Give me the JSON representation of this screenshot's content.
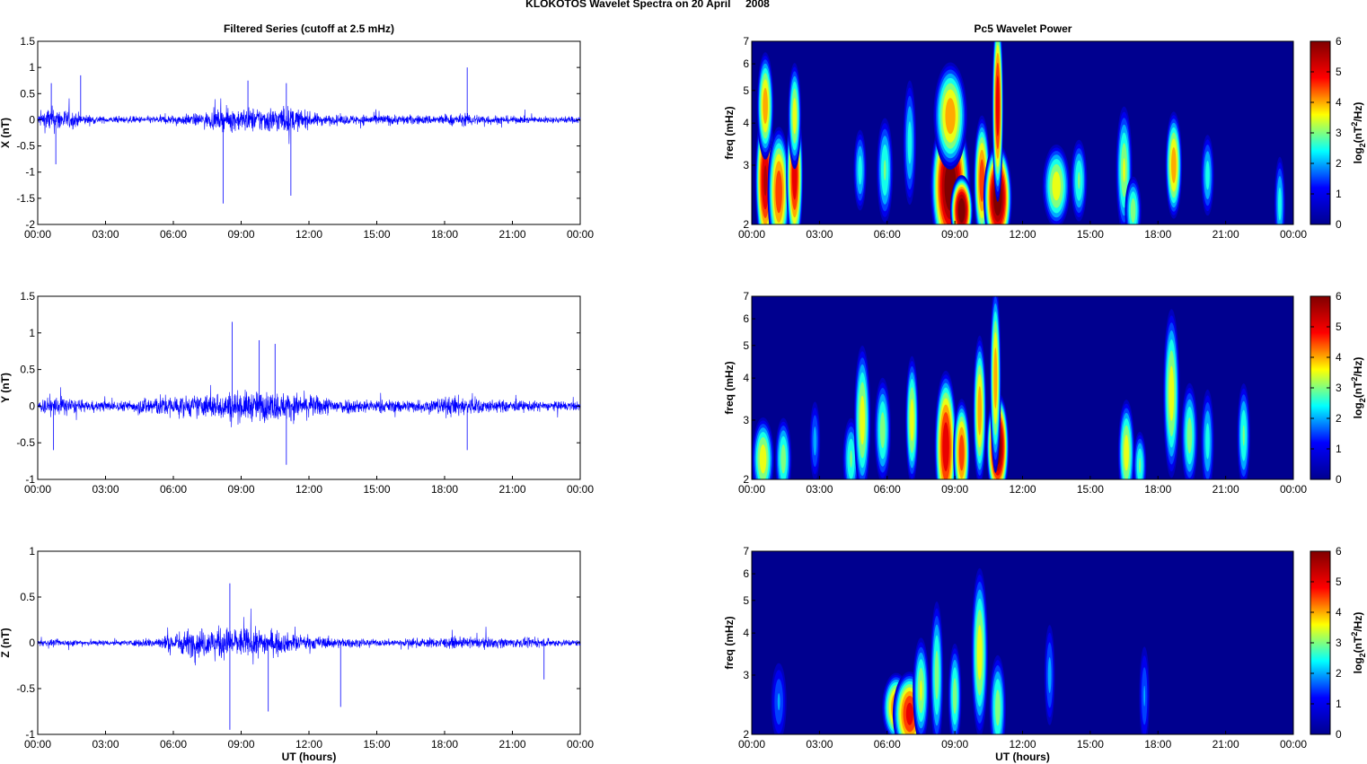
{
  "figure": {
    "title": "KLOKOTOS Wavelet Spectra on 20 April     2008",
    "left_title": "Filtered Series (cutoff at 2.5 mHz)",
    "right_title": "Pc5 Wavelet Power",
    "xlabel": "UT (hours)"
  },
  "colors": {
    "series": "#0000ff",
    "background": "#00008f",
    "colormap": [
      "#00008f",
      "#0000ff",
      "#00ffff",
      "#ffff00",
      "#ff0000",
      "#800000"
    ]
  },
  "chart_data": [
    {
      "type": "line",
      "panel": "X",
      "ylabel": "X (nT)",
      "ylim": [
        -2,
        1.5
      ],
      "yticks": [
        -2,
        -1.5,
        -1,
        -0.5,
        0,
        0.5,
        1,
        1.5
      ],
      "xtick_labels": [
        "00:00",
        "03:00",
        "06:00",
        "09:00",
        "12:00",
        "15:00",
        "18:00",
        "21:00",
        "00:00"
      ],
      "xlim_hours": [
        0,
        24
      ],
      "noise_envelope": [
        [
          0,
          0.18
        ],
        [
          0.5,
          0.45
        ],
        [
          1.5,
          0.3
        ],
        [
          2,
          0.18
        ],
        [
          3,
          0.1
        ],
        [
          5,
          0.12
        ],
        [
          7,
          0.2
        ],
        [
          8.5,
          0.38
        ],
        [
          9.5,
          0.4
        ],
        [
          11,
          0.45
        ],
        [
          12,
          0.25
        ],
        [
          13,
          0.15
        ],
        [
          15,
          0.18
        ],
        [
          17,
          0.15
        ],
        [
          19,
          0.2
        ],
        [
          21,
          0.12
        ],
        [
          22.5,
          0.1
        ],
        [
          24,
          0.12
        ]
      ],
      "spikes": [
        [
          0.6,
          0.7
        ],
        [
          1.9,
          0.85
        ],
        [
          8.2,
          -1.6
        ],
        [
          9.3,
          0.75
        ],
        [
          11.2,
          -1.45
        ],
        [
          11,
          0.7
        ],
        [
          19.0,
          1.0
        ],
        [
          0.8,
          -0.85
        ]
      ]
    },
    {
      "type": "line",
      "panel": "Y",
      "ylabel": "Y (nT)",
      "ylim": [
        -1,
        1.5
      ],
      "yticks": [
        -1,
        -0.5,
        0,
        0.5,
        1,
        1.5
      ],
      "xtick_labels": [
        "00:00",
        "03:00",
        "06:00",
        "09:00",
        "12:00",
        "15:00",
        "18:00",
        "21:00",
        "00:00"
      ],
      "xlim_hours": [
        0,
        24
      ],
      "noise_envelope": [
        [
          0,
          0.15
        ],
        [
          1,
          0.25
        ],
        [
          2,
          0.12
        ],
        [
          4,
          0.12
        ],
        [
          5,
          0.25
        ],
        [
          7,
          0.25
        ],
        [
          8.5,
          0.35
        ],
        [
          10,
          0.35
        ],
        [
          11.5,
          0.3
        ],
        [
          13,
          0.2
        ],
        [
          15,
          0.15
        ],
        [
          17,
          0.15
        ],
        [
          18.5,
          0.25
        ],
        [
          20,
          0.15
        ],
        [
          22,
          0.12
        ],
        [
          24,
          0.1
        ]
      ],
      "spikes": [
        [
          8.6,
          1.15
        ],
        [
          11.0,
          -0.8
        ],
        [
          9.8,
          0.9
        ],
        [
          10.5,
          0.85
        ],
        [
          19.0,
          -0.6
        ],
        [
          0.7,
          -0.6
        ]
      ]
    },
    {
      "type": "line",
      "panel": "Z",
      "ylabel": "Z (nT)",
      "ylim": [
        -1,
        1
      ],
      "yticks": [
        -1,
        -0.5,
        0,
        0.5,
        1
      ],
      "xtick_labels": [
        "00:00",
        "03:00",
        "06:00",
        "09:00",
        "12:00",
        "15:00",
        "18:00",
        "21:00",
        "00:00"
      ],
      "xlim_hours": [
        0,
        24
      ],
      "noise_envelope": [
        [
          0,
          0.06
        ],
        [
          2,
          0.06
        ],
        [
          4,
          0.05
        ],
        [
          5.5,
          0.12
        ],
        [
          6.5,
          0.25
        ],
        [
          8.5,
          0.3
        ],
        [
          10,
          0.25
        ],
        [
          11.5,
          0.15
        ],
        [
          13,
          0.1
        ],
        [
          15,
          0.06
        ],
        [
          18,
          0.1
        ],
        [
          20,
          0.1
        ],
        [
          22,
          0.08
        ],
        [
          24,
          0.06
        ]
      ],
      "spikes": [
        [
          8.5,
          -0.95
        ],
        [
          8.5,
          0.65
        ],
        [
          10.2,
          -0.75
        ],
        [
          13.4,
          -0.7
        ],
        [
          22.4,
          -0.4
        ]
      ]
    },
    {
      "type": "heatmap",
      "panel": "X",
      "ylabel": "freq (mHz)",
      "ylim_mhz": [
        2,
        7
      ],
      "yscale": "log",
      "yticks": [
        2,
        3,
        4,
        5,
        6,
        7
      ],
      "xtick_labels": [
        "00:00",
        "03:00",
        "06:00",
        "09:00",
        "12:00",
        "15:00",
        "18:00",
        "21:00",
        "00:00"
      ],
      "xlim_hours": [
        0,
        24
      ],
      "colorbar_label": "log2(nT2/Hz)",
      "clim": [
        0,
        6
      ],
      "blobs": [
        [
          0.6,
          2.7,
          0.18,
          0.3,
          5.2
        ],
        [
          0.6,
          4.5,
          0.15,
          0.2,
          4.0
        ],
        [
          1.2,
          2.5,
          0.2,
          0.25,
          4.5
        ],
        [
          1.9,
          2.8,
          0.15,
          0.3,
          5.0
        ],
        [
          1.9,
          4.2,
          0.12,
          0.2,
          3.5
        ],
        [
          4.8,
          2.9,
          0.12,
          0.15,
          2.5
        ],
        [
          5.9,
          2.9,
          0.15,
          0.2,
          2.8
        ],
        [
          7.0,
          3.5,
          0.12,
          0.25,
          2.5
        ],
        [
          8.8,
          2.6,
          0.35,
          0.3,
          6.0
        ],
        [
          8.8,
          4.2,
          0.3,
          0.2,
          4.0
        ],
        [
          9.3,
          2.2,
          0.2,
          0.12,
          6.0
        ],
        [
          10.2,
          2.7,
          0.15,
          0.25,
          4.5
        ],
        [
          10.9,
          2.4,
          0.25,
          0.2,
          6.0
        ],
        [
          10.9,
          4.5,
          0.1,
          0.4,
          5.0
        ],
        [
          13.5,
          2.6,
          0.25,
          0.15,
          3.5
        ],
        [
          14.5,
          2.7,
          0.15,
          0.15,
          2.8
        ],
        [
          16.5,
          2.9,
          0.15,
          0.25,
          3.2
        ],
        [
          16.9,
          2.2,
          0.15,
          0.12,
          3.0
        ],
        [
          18.7,
          3.0,
          0.15,
          0.2,
          4.0
        ],
        [
          20.2,
          2.8,
          0.12,
          0.15,
          2.5
        ],
        [
          23.4,
          2.3,
          0.1,
          0.18,
          2.5
        ]
      ]
    },
    {
      "type": "heatmap",
      "panel": "Y",
      "ylabel": "freq (mHz)",
      "ylim_mhz": [
        2,
        7
      ],
      "yscale": "log",
      "yticks": [
        2,
        3,
        4,
        5,
        6,
        7
      ],
      "xtick_labels": [
        "00:00",
        "03:00",
        "06:00",
        "09:00",
        "12:00",
        "15:00",
        "18:00",
        "21:00",
        "00:00"
      ],
      "xlim_hours": [
        0,
        24
      ],
      "colorbar_label": "log2(nT2/Hz)",
      "clim": [
        0,
        6
      ],
      "blobs": [
        [
          0.5,
          2.3,
          0.2,
          0.15,
          3.5
        ],
        [
          1.4,
          2.3,
          0.15,
          0.15,
          3.0
        ],
        [
          2.8,
          2.6,
          0.1,
          0.15,
          2.0
        ],
        [
          4.4,
          2.3,
          0.15,
          0.15,
          2.8
        ],
        [
          4.9,
          3.0,
          0.15,
          0.3,
          3.5
        ],
        [
          5.8,
          2.8,
          0.15,
          0.2,
          3.0
        ],
        [
          7.1,
          3.0,
          0.12,
          0.25,
          3.5
        ],
        [
          8.6,
          2.5,
          0.2,
          0.3,
          5.0
        ],
        [
          9.3,
          2.4,
          0.15,
          0.2,
          4.5
        ],
        [
          10.1,
          3.2,
          0.12,
          0.3,
          4.0
        ],
        [
          10.9,
          2.5,
          0.2,
          0.2,
          6.0
        ],
        [
          10.8,
          4.0,
          0.1,
          0.4,
          4.0
        ],
        [
          16.6,
          2.4,
          0.15,
          0.2,
          3.5
        ],
        [
          17.2,
          2.2,
          0.12,
          0.12,
          2.8
        ],
        [
          18.6,
          3.6,
          0.15,
          0.35,
          3.5
        ],
        [
          19.4,
          2.7,
          0.15,
          0.2,
          3.0
        ],
        [
          20.2,
          2.6,
          0.12,
          0.2,
          2.5
        ],
        [
          21.8,
          2.7,
          0.12,
          0.2,
          2.8
        ]
      ]
    },
    {
      "type": "heatmap",
      "panel": "Z",
      "ylabel": "freq (mHz)",
      "ylim_mhz": [
        2,
        7
      ],
      "yscale": "log",
      "yticks": [
        2,
        3,
        4,
        5,
        6,
        7
      ],
      "xtick_labels": [
        "00:00",
        "03:00",
        "06:00",
        "09:00",
        "12:00",
        "15:00",
        "18:00",
        "21:00",
        "00:00"
      ],
      "xlim_hours": [
        0,
        24
      ],
      "colorbar_label": "log2(nT2/Hz)",
      "clim": [
        0,
        6
      ],
      "blobs": [
        [
          1.2,
          2.5,
          0.15,
          0.15,
          1.8
        ],
        [
          6.4,
          2.4,
          0.25,
          0.12,
          4.2
        ],
        [
          7.0,
          2.3,
          0.3,
          0.15,
          4.8
        ],
        [
          7.5,
          2.7,
          0.15,
          0.2,
          3.2
        ],
        [
          8.2,
          3.0,
          0.12,
          0.3,
          3.0
        ],
        [
          9.0,
          2.6,
          0.12,
          0.2,
          3.0
        ],
        [
          10.1,
          3.5,
          0.15,
          0.35,
          3.5
        ],
        [
          10.9,
          2.4,
          0.15,
          0.2,
          3.0
        ],
        [
          13.2,
          3.0,
          0.1,
          0.2,
          2.0
        ],
        [
          17.4,
          2.6,
          0.1,
          0.2,
          1.8
        ]
      ]
    }
  ]
}
